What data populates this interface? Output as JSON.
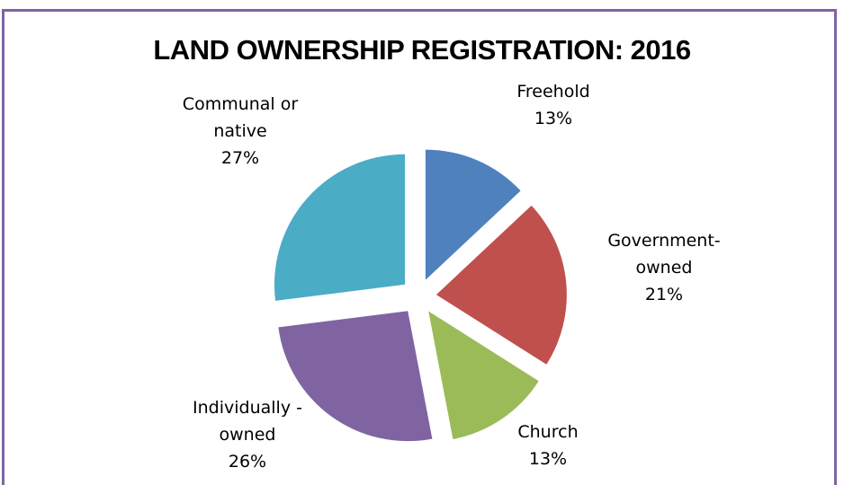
{
  "chart_data": {
    "type": "pie",
    "title": "LAND OWNERSHIP REGISTRATION:  2016",
    "exploded": true,
    "slices": [
      {
        "name": "Freehold",
        "label_lines": [
          "Freehold",
          "13%"
        ],
        "value": 13,
        "color": "#4f81bd"
      },
      {
        "name": "Government-owned",
        "label_lines": [
          "Government-",
          "owned",
          "21%"
        ],
        "value": 21,
        "color": "#c0504d"
      },
      {
        "name": "Church",
        "label_lines": [
          "Church",
          "13%"
        ],
        "value": 13,
        "color": "#9bbb59"
      },
      {
        "name": "Individually-owned",
        "label_lines": [
          "Individually -",
          "owned",
          "26%"
        ],
        "value": 26,
        "color": "#8064a2"
      },
      {
        "name": "Communal or native",
        "label_lines": [
          "Communal or",
          "native",
          "27%"
        ],
        "value": 27,
        "color": "#4bacc6"
      }
    ]
  }
}
